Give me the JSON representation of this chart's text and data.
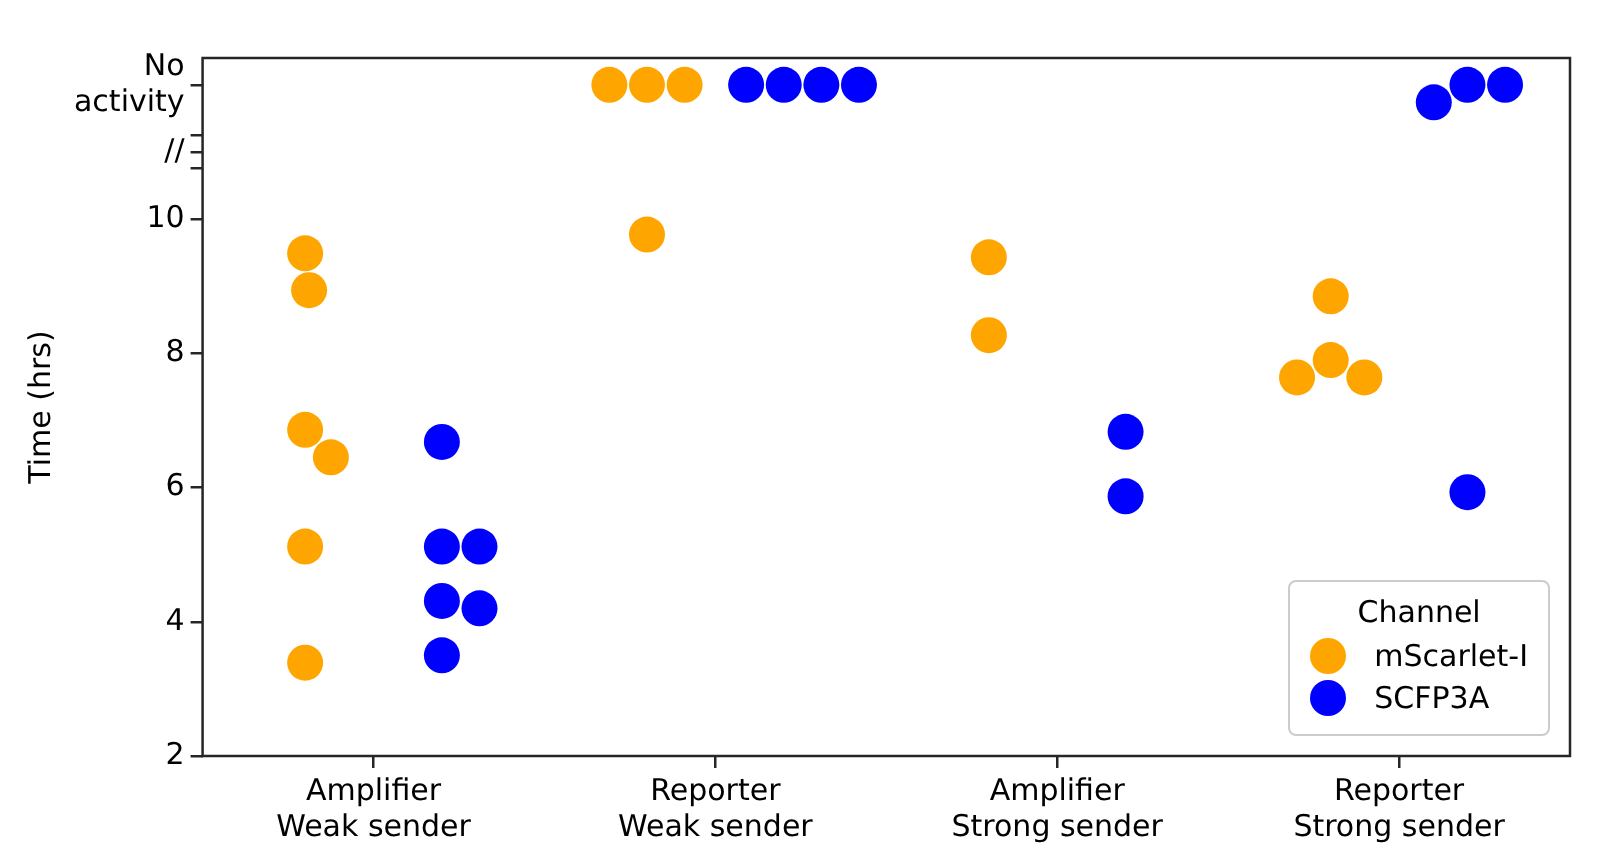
{
  "chart_data": {
    "type": "scatter",
    "ylabel": "Time (hrs)",
    "legend_title": "Channel",
    "legend": "bottom right",
    "categories": [
      "Amplifier\nWeak sender",
      "Reporter\nWeak sender",
      "Amplifier\nStrong sender",
      "Reporter\nStrong sender"
    ],
    "ylim": [
      2,
      12.4
    ],
    "yticks": [
      2,
      4,
      6,
      8,
      10,
      {
        "value": 10.75,
        "label": null
      },
      {
        "value": 11,
        "label": "//"
      },
      {
        "value": 11.25,
        "label": null
      },
      {
        "value": 12,
        "label": "No activity"
      }
    ],
    "marker": "circle",
    "series": [
      {
        "name": "mScarlet-I",
        "color": "#ffa500",
        "x": [
          "Amplifier\nWeak sender",
          "Amplifier\nWeak sender",
          "Amplifier\nWeak sender",
          "Amplifier\nWeak sender",
          "Amplifier\nWeak sender",
          "Amplifier\nWeak sender",
          "Reporter\nWeak sender",
          "Reporter\nWeak sender",
          "Reporter\nWeak sender",
          "Reporter\nWeak sender",
          "Amplifier\nStrong sender",
          "Amplifier\nStrong sender",
          "Reporter\nStrong sender",
          "Reporter\nStrong sender",
          "Reporter\nStrong sender",
          "Reporter\nStrong sender"
        ],
        "values": [
          9.49,
          8.94,
          6.86,
          6.45,
          5.12,
          3.39,
          12,
          12,
          12,
          9.77,
          9.43,
          8.27,
          8.85,
          7.9,
          7.64,
          7.64
        ]
      },
      {
        "name": "SCFP3A",
        "color": "#0000ff",
        "x": [
          "Amplifier\nWeak sender",
          "Amplifier\nWeak sender",
          "Amplifier\nWeak sender",
          "Amplifier\nWeak sender",
          "Amplifier\nWeak sender",
          "Amplifier\nWeak sender",
          "Reporter\nWeak sender",
          "Reporter\nWeak sender",
          "Reporter\nWeak sender",
          "Reporter\nWeak sender",
          "Amplifier\nStrong sender",
          "Amplifier\nStrong sender",
          "Reporter\nStrong sender",
          "Reporter\nStrong sender",
          "Reporter\nStrong sender",
          "Reporter\nStrong sender"
        ],
        "values": [
          6.68,
          5.12,
          5.12,
          4.31,
          4.2,
          3.5,
          12,
          12,
          12,
          12,
          6.83,
          5.87,
          12,
          12,
          11.74,
          5.93
        ]
      }
    ]
  }
}
